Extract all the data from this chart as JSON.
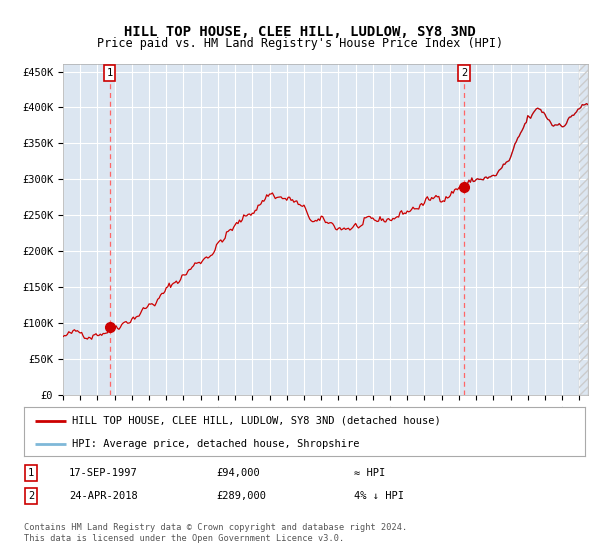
{
  "title": "HILL TOP HOUSE, CLEE HILL, LUDLOW, SY8 3ND",
  "subtitle": "Price paid vs. HM Land Registry's House Price Index (HPI)",
  "background_color": "#dce6f1",
  "plot_bg_color": "#dce6f1",
  "ylim": [
    0,
    460000
  ],
  "yticks": [
    0,
    50000,
    100000,
    150000,
    200000,
    250000,
    300000,
    350000,
    400000,
    450000
  ],
  "ytick_labels": [
    "£0",
    "£50K",
    "£100K",
    "£150K",
    "£200K",
    "£250K",
    "£300K",
    "£350K",
    "£400K",
    "£450K"
  ],
  "sale1_date_year": 1997.71,
  "sale1_price": 94000,
  "sale2_date_year": 2018.29,
  "sale2_price": 289000,
  "hpi_line_color": "#7fb8d8",
  "price_line_color": "#cc0000",
  "vline_color": "#ff6666",
  "marker_color": "#cc0000",
  "legend_label1": "HILL TOP HOUSE, CLEE HILL, LUDLOW, SY8 3ND (detached house)",
  "legend_label2": "HPI: Average price, detached house, Shropshire",
  "footnote": "Contains HM Land Registry data © Crown copyright and database right 2024.\nThis data is licensed under the Open Government Licence v3.0.",
  "table_rows": [
    {
      "num": "1",
      "date": "17-SEP-1997",
      "price": "£94,000",
      "hpi": "≈ HPI"
    },
    {
      "num": "2",
      "date": "24-APR-2018",
      "price": "£289,000",
      "hpi": "4% ↓ HPI"
    }
  ]
}
